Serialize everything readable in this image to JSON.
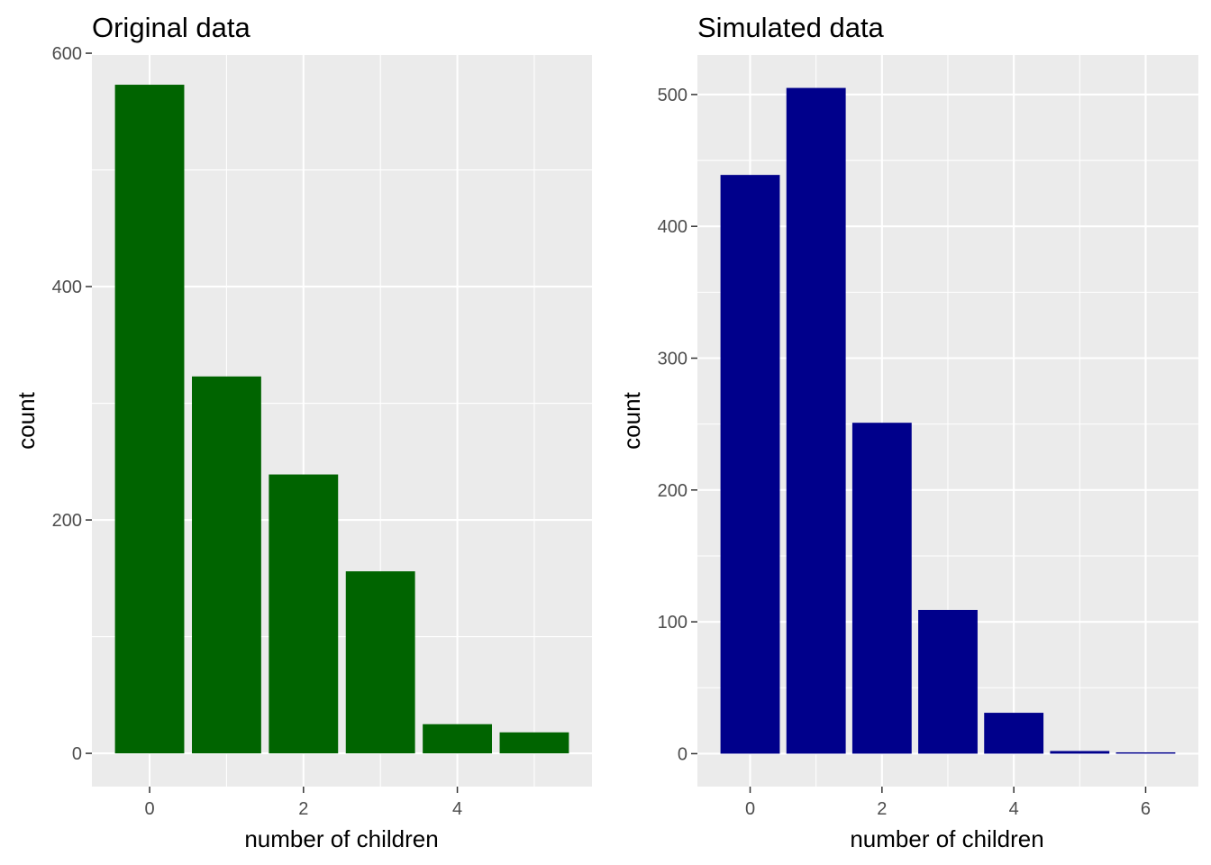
{
  "chart_data": [
    {
      "type": "bar",
      "title": "Original data",
      "xlabel": "number of children",
      "ylabel": "count",
      "color": "#006400",
      "x": [
        0,
        1,
        2,
        3,
        4,
        5
      ],
      "values": [
        573,
        323,
        239,
        156,
        25,
        18
      ],
      "xlim": [
        -0.75,
        5.75
      ],
      "ylim": [
        -28.5,
        598.5
      ],
      "xticks": [
        0,
        2,
        4
      ],
      "xtick_labels": [
        "0",
        "2",
        "4"
      ],
      "yticks": [
        0,
        200,
        400,
        600
      ],
      "ytick_labels": [
        "0",
        "200",
        "400",
        "600"
      ],
      "grid": true,
      "legend": "none"
    },
    {
      "type": "bar",
      "title": "Simulated data",
      "xlabel": "number of children",
      "ylabel": "count",
      "color": "#00008b",
      "x": [
        0,
        1,
        2,
        3,
        4,
        5,
        6
      ],
      "values": [
        439,
        505,
        251,
        109,
        31,
        2,
        1
      ],
      "xlim": [
        -0.8,
        6.8
      ],
      "ylim": [
        -25,
        530
      ],
      "xticks": [
        0,
        2,
        4,
        6
      ],
      "xtick_labels": [
        "0",
        "2",
        "4",
        "6"
      ],
      "yticks": [
        0,
        100,
        200,
        300,
        400,
        500
      ],
      "ytick_labels": [
        "0",
        "100",
        "200",
        "300",
        "400",
        "500"
      ],
      "grid": true,
      "legend": "none"
    }
  ]
}
